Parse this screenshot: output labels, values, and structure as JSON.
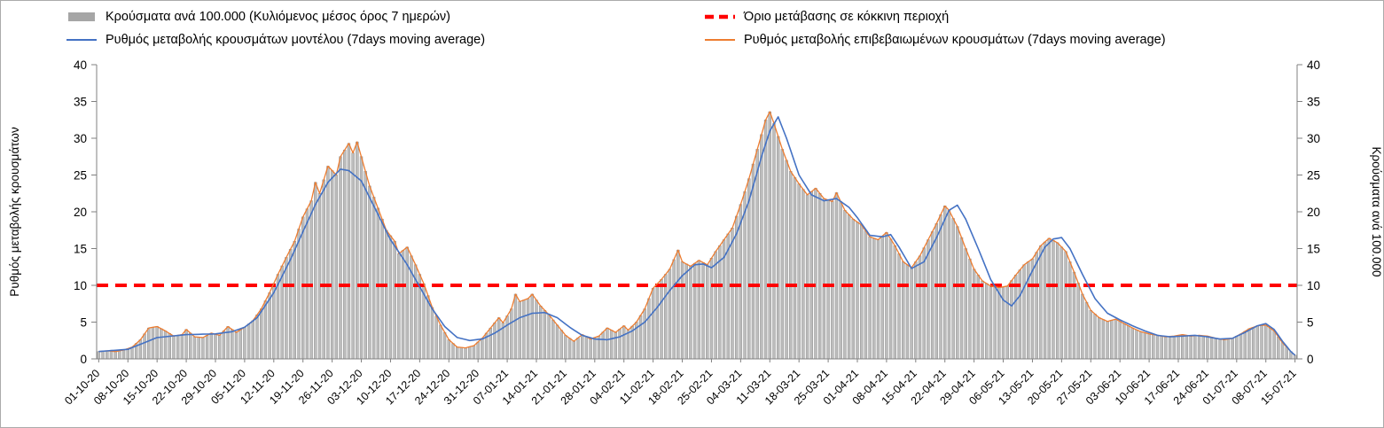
{
  "legend": {
    "items": [
      {
        "label": "Κρούσματα ανά 100.000 (Κυλιόμενος μέσος όρος 7 ημερών)",
        "color": "#a6a6a6"
      },
      {
        "label": "Όριο μετάβασης σε κόκκινη περιοχή",
        "color": "#ff0000"
      },
      {
        "label": "Ρυθμός μεταβολής κρουσμάτων μοντέλου (7days moving average)",
        "color": "#4472c4"
      },
      {
        "label": "Ρυθμός μεταβολής επιβεβαιωμένων κρουσμάτων (7days moving average)",
        "color": "#ed7d31"
      }
    ]
  },
  "axes": {
    "left_title": "Ρυθμός μεταβολής κρουσμάτων",
    "right_title": "Κρούσματα ανά 100.000",
    "y_ticks": [
      0,
      5,
      10,
      15,
      20,
      25,
      30,
      35,
      40
    ]
  },
  "chart_data": {
    "type": "combo-bar-line",
    "ylim": [
      0,
      40
    ],
    "days_total": 288,
    "x_tick_interval_days": 7,
    "x_tick_labels": [
      "01-10-20",
      "08-10-20",
      "15-10-20",
      "22-10-20",
      "29-10-20",
      "05-11-20",
      "12-11-20",
      "19-11-20",
      "26-11-20",
      "03-12-20",
      "10-12-20",
      "17-12-20",
      "24-12-20",
      "31-12-20",
      "07-01-21",
      "14-01-21",
      "21-01-21",
      "28-01-21",
      "04-02-21",
      "11-02-21",
      "18-02-21",
      "25-02-21",
      "04-03-21",
      "11-03-21",
      "18-03-21",
      "25-03-21",
      "01-04-21",
      "08-04-21",
      "15-04-21",
      "22-04-21",
      "29-04-21",
      "06-05-21",
      "13-05-21",
      "20-05-21",
      "27-05-21",
      "03-06-21",
      "10-06-21",
      "17-06-21",
      "24-06-21",
      "01-07-21",
      "08-07-21",
      "15-07-21"
    ],
    "threshold": {
      "label": "Όριο μετάβασης σε κόκκινη περιοχή",
      "value": 10,
      "color": "#ff0000",
      "style": "dashed"
    },
    "series": [
      {
        "id": "cases_per_100k",
        "name": "Κρούσματα ανά 100.000 (Κυλιόμενος μέσος όρος 7 ημερών)",
        "type": "bar",
        "color": "#bdbdbd",
        "stroke": "#8f8f8f",
        "anchors": [
          [
            0,
            1.0
          ],
          [
            2,
            1.1
          ],
          [
            4,
            1.0
          ],
          [
            6,
            1.2
          ],
          [
            8,
            1.6
          ],
          [
            10,
            2.6
          ],
          [
            12,
            4.2
          ],
          [
            14,
            4.4
          ],
          [
            16,
            3.8
          ],
          [
            18,
            3.1
          ],
          [
            20,
            3.3
          ],
          [
            21,
            4.0
          ],
          [
            23,
            3.0
          ],
          [
            25,
            2.9
          ],
          [
            27,
            3.5
          ],
          [
            29,
            3.2
          ],
          [
            31,
            4.4
          ],
          [
            33,
            3.6
          ],
          [
            35,
            4.3
          ],
          [
            37,
            5.2
          ],
          [
            39,
            6.8
          ],
          [
            41,
            9.0
          ],
          [
            43,
            11.5
          ],
          [
            45,
            13.8
          ],
          [
            47,
            16.0
          ],
          [
            49,
            19.3
          ],
          [
            51,
            21.5
          ],
          [
            52,
            24.0
          ],
          [
            53,
            22.5
          ],
          [
            55,
            26.2
          ],
          [
            57,
            25.0
          ],
          [
            58,
            27.5
          ],
          [
            60,
            29.3
          ],
          [
            61,
            28.0
          ],
          [
            62,
            29.5
          ],
          [
            63,
            27.5
          ],
          [
            65,
            23.5
          ],
          [
            67,
            20.5
          ],
          [
            69,
            17.5
          ],
          [
            71,
            16.0
          ],
          [
            72,
            14.3
          ],
          [
            74,
            15.2
          ],
          [
            76,
            12.8
          ],
          [
            78,
            10.2
          ],
          [
            80,
            7.0
          ],
          [
            82,
            4.6
          ],
          [
            84,
            2.6
          ],
          [
            86,
            1.6
          ],
          [
            88,
            1.5
          ],
          [
            90,
            1.8
          ],
          [
            92,
            2.8
          ],
          [
            94,
            4.2
          ],
          [
            96,
            5.6
          ],
          [
            97,
            4.9
          ],
          [
            99,
            6.8
          ],
          [
            100,
            8.8
          ],
          [
            101,
            7.8
          ],
          [
            103,
            8.2
          ],
          [
            104,
            8.8
          ],
          [
            106,
            7.2
          ],
          [
            108,
            6.0
          ],
          [
            110,
            4.6
          ],
          [
            112,
            3.2
          ],
          [
            114,
            2.4
          ],
          [
            116,
            3.3
          ],
          [
            118,
            2.7
          ],
          [
            120,
            3.1
          ],
          [
            122,
            4.2
          ],
          [
            124,
            3.6
          ],
          [
            126,
            4.5
          ],
          [
            127,
            3.9
          ],
          [
            129,
            5.0
          ],
          [
            131,
            6.8
          ],
          [
            133,
            9.6
          ],
          [
            135,
            10.8
          ],
          [
            137,
            12.2
          ],
          [
            139,
            14.8
          ],
          [
            140,
            13.2
          ],
          [
            142,
            12.6
          ],
          [
            144,
            13.4
          ],
          [
            146,
            12.8
          ],
          [
            148,
            14.6
          ],
          [
            150,
            16.2
          ],
          [
            152,
            17.8
          ],
          [
            154,
            21.0
          ],
          [
            156,
            24.5
          ],
          [
            158,
            28.5
          ],
          [
            159,
            30.5
          ],
          [
            160,
            32.5
          ],
          [
            161,
            33.6
          ],
          [
            162,
            32.0
          ],
          [
            164,
            28.5
          ],
          [
            166,
            25.5
          ],
          [
            168,
            23.8
          ],
          [
            170,
            22.3
          ],
          [
            172,
            23.2
          ],
          [
            174,
            21.8
          ],
          [
            176,
            21.4
          ],
          [
            177,
            22.6
          ],
          [
            179,
            20.2
          ],
          [
            181,
            19.0
          ],
          [
            183,
            18.2
          ],
          [
            185,
            16.6
          ],
          [
            187,
            16.2
          ],
          [
            189,
            17.2
          ],
          [
            191,
            15.4
          ],
          [
            193,
            13.2
          ],
          [
            195,
            12.4
          ],
          [
            197,
            14.0
          ],
          [
            199,
            16.2
          ],
          [
            201,
            18.4
          ],
          [
            203,
            20.8
          ],
          [
            204,
            20.2
          ],
          [
            206,
            18.0
          ],
          [
            208,
            15.0
          ],
          [
            210,
            12.2
          ],
          [
            212,
            10.6
          ],
          [
            214,
            9.9
          ],
          [
            216,
            9.7
          ],
          [
            218,
            9.9
          ],
          [
            220,
            11.4
          ],
          [
            222,
            12.8
          ],
          [
            224,
            13.6
          ],
          [
            226,
            15.4
          ],
          [
            228,
            16.4
          ],
          [
            230,
            15.8
          ],
          [
            232,
            14.6
          ],
          [
            234,
            11.8
          ],
          [
            236,
            8.8
          ],
          [
            238,
            6.6
          ],
          [
            240,
            5.6
          ],
          [
            242,
            5.1
          ],
          [
            244,
            5.4
          ],
          [
            246,
            4.8
          ],
          [
            248,
            4.2
          ],
          [
            250,
            3.7
          ],
          [
            252,
            3.4
          ],
          [
            254,
            3.2
          ],
          [
            256,
            3.0
          ],
          [
            258,
            3.1
          ],
          [
            260,
            3.3
          ],
          [
            262,
            3.1
          ],
          [
            264,
            3.2
          ],
          [
            266,
            3.1
          ],
          [
            268,
            2.8
          ],
          [
            270,
            2.6
          ],
          [
            272,
            2.8
          ],
          [
            274,
            3.4
          ],
          [
            276,
            4.1
          ],
          [
            278,
            4.5
          ],
          [
            280,
            4.6
          ],
          [
            282,
            3.8
          ],
          [
            284,
            2.2
          ],
          [
            286,
            1.0
          ],
          [
            287,
            0.5
          ]
        ]
      },
      {
        "id": "confirmed_rate",
        "name": "Ρυθμός μεταβολής επιβεβαιωμένων κρουσμάτων (7days moving average)",
        "type": "line",
        "color": "#ed7d31",
        "width": 1.3,
        "same_as": "cases_per_100k"
      },
      {
        "id": "model_rate",
        "name": "Ρυθμός μεταβολής κρουσμάτων μοντέλου (7days moving average)",
        "type": "line",
        "color": "#4472c4",
        "width": 1.6,
        "anchors": [
          [
            0,
            1.0
          ],
          [
            7,
            1.3
          ],
          [
            14,
            2.9
          ],
          [
            21,
            3.3
          ],
          [
            28,
            3.4
          ],
          [
            32,
            3.7
          ],
          [
            35,
            4.3
          ],
          [
            38,
            5.6
          ],
          [
            42,
            9.0
          ],
          [
            46,
            13.5
          ],
          [
            49,
            17.3
          ],
          [
            52,
            21.0
          ],
          [
            55,
            24.0
          ],
          [
            58,
            25.8
          ],
          [
            60,
            25.6
          ],
          [
            63,
            24.2
          ],
          [
            66,
            20.8
          ],
          [
            70,
            16.2
          ],
          [
            74,
            12.8
          ],
          [
            77,
            9.8
          ],
          [
            80,
            6.8
          ],
          [
            83,
            4.4
          ],
          [
            86,
            2.9
          ],
          [
            89,
            2.5
          ],
          [
            92,
            2.7
          ],
          [
            95,
            3.5
          ],
          [
            98,
            4.6
          ],
          [
            101,
            5.6
          ],
          [
            104,
            6.2
          ],
          [
            107,
            6.3
          ],
          [
            110,
            5.6
          ],
          [
            113,
            4.3
          ],
          [
            116,
            3.2
          ],
          [
            119,
            2.7
          ],
          [
            122,
            2.6
          ],
          [
            125,
            3.0
          ],
          [
            128,
            3.8
          ],
          [
            131,
            5.0
          ],
          [
            134,
            7.0
          ],
          [
            137,
            9.3
          ],
          [
            140,
            11.3
          ],
          [
            143,
            12.8
          ],
          [
            145,
            12.9
          ],
          [
            147,
            12.4
          ],
          [
            150,
            13.8
          ],
          [
            153,
            17.0
          ],
          [
            156,
            21.5
          ],
          [
            159,
            27.5
          ],
          [
            161,
            31.0
          ],
          [
            163,
            32.9
          ],
          [
            165,
            30.0
          ],
          [
            168,
            25.0
          ],
          [
            171,
            22.3
          ],
          [
            174,
            21.5
          ],
          [
            177,
            21.8
          ],
          [
            180,
            20.6
          ],
          [
            182,
            19.2
          ],
          [
            185,
            16.8
          ],
          [
            188,
            16.6
          ],
          [
            190,
            16.9
          ],
          [
            192,
            15.2
          ],
          [
            195,
            12.3
          ],
          [
            198,
            13.2
          ],
          [
            201,
            16.5
          ],
          [
            204,
            20.2
          ],
          [
            206,
            20.9
          ],
          [
            208,
            19.0
          ],
          [
            211,
            15.0
          ],
          [
            214,
            10.8
          ],
          [
            217,
            8.0
          ],
          [
            219,
            7.2
          ],
          [
            221,
            8.6
          ],
          [
            224,
            12.0
          ],
          [
            227,
            15.2
          ],
          [
            229,
            16.3
          ],
          [
            231,
            16.5
          ],
          [
            233,
            15.0
          ],
          [
            236,
            11.5
          ],
          [
            239,
            8.2
          ],
          [
            242,
            6.2
          ],
          [
            245,
            5.3
          ],
          [
            248,
            4.5
          ],
          [
            251,
            3.8
          ],
          [
            254,
            3.2
          ],
          [
            257,
            3.0
          ],
          [
            260,
            3.1
          ],
          [
            263,
            3.2
          ],
          [
            266,
            3.0
          ],
          [
            269,
            2.7
          ],
          [
            272,
            2.8
          ],
          [
            275,
            3.6
          ],
          [
            278,
            4.5
          ],
          [
            280,
            4.8
          ],
          [
            282,
            4.0
          ],
          [
            284,
            2.4
          ],
          [
            286,
            1.0
          ],
          [
            287,
            0.5
          ]
        ]
      }
    ]
  }
}
